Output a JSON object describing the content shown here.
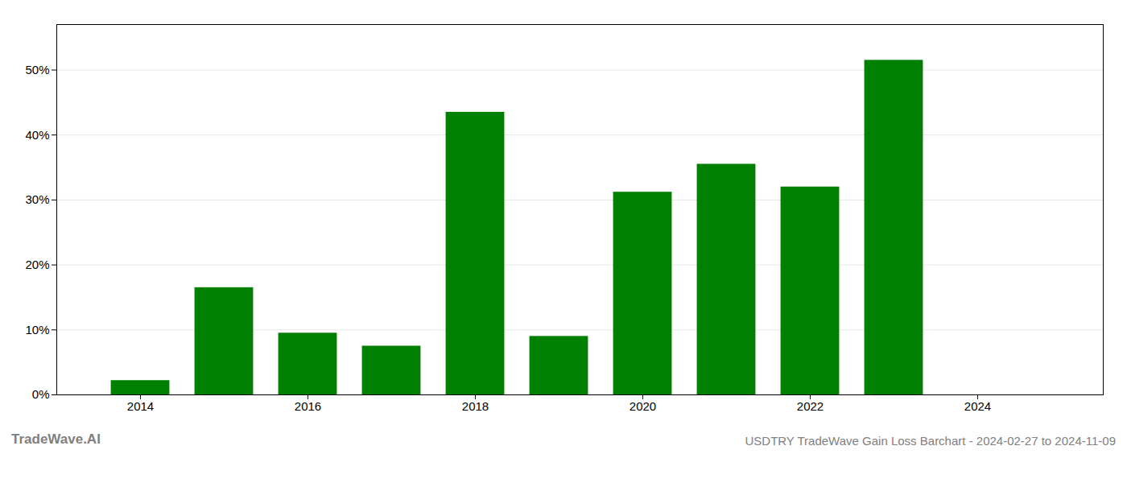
{
  "chart_data": {
    "type": "bar",
    "x": [
      2014,
      2015,
      2016,
      2017,
      2018,
      2019,
      2020,
      2021,
      2022,
      2023
    ],
    "values": [
      0.022,
      0.165,
      0.095,
      0.075,
      0.435,
      0.09,
      0.312,
      0.355,
      0.32,
      0.515
    ],
    "color": "#008000",
    "xlim": [
      2013.0,
      2025.5
    ],
    "xticks": [
      2014,
      2016,
      2018,
      2020,
      2022,
      2024
    ],
    "ylim": [
      0,
      0.57
    ],
    "yticks": [
      {
        "value": 0.0,
        "label": "0%"
      },
      {
        "value": 0.1,
        "label": "10%"
      },
      {
        "value": 0.2,
        "label": "20%"
      },
      {
        "value": 0.3,
        "label": "30%"
      },
      {
        "value": 0.4,
        "label": "40%"
      },
      {
        "value": 0.5,
        "label": "50%"
      }
    ],
    "grid": true,
    "annotations": [
      "TradeWave.AI",
      "USDTRY TradeWave Gain Loss Barchart - 2024-02-27 to 2024-11-09"
    ]
  }
}
